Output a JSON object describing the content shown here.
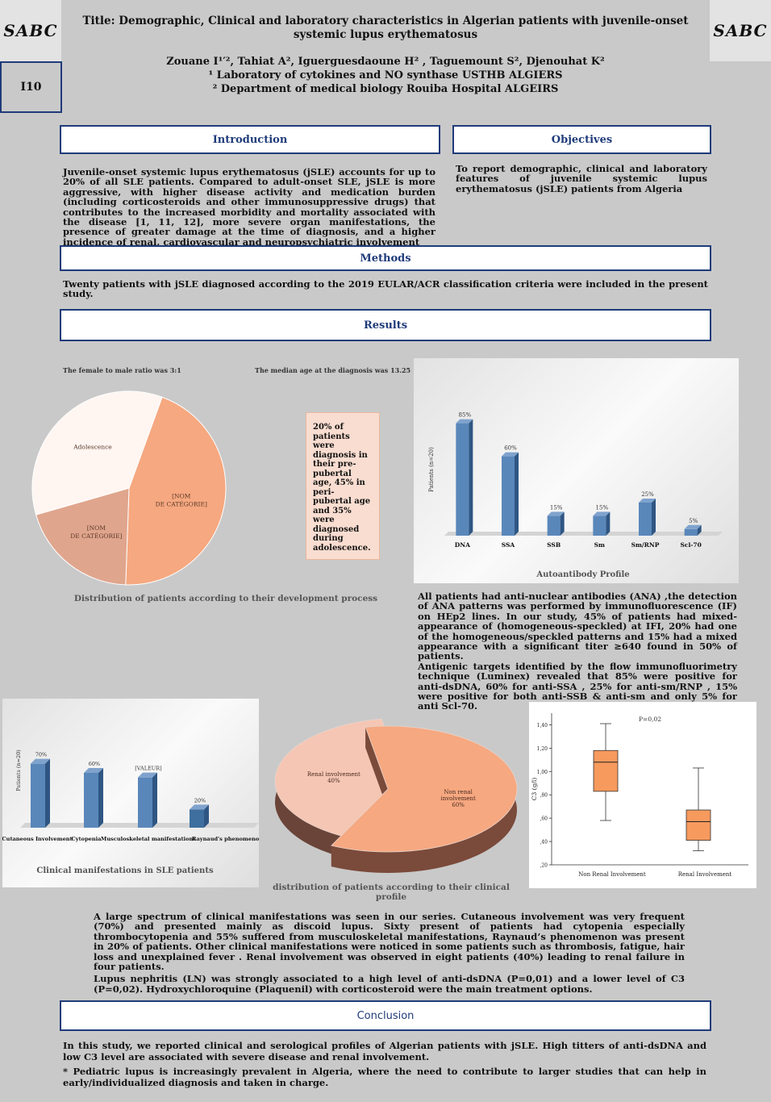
{
  "header": {
    "logo_text": "SABC",
    "poster_code": "I10",
    "title": "Title: Demographic, Clinical and laboratory characteristics in Algerian patients with juvenile-onset systemic lupus erythematosus",
    "authors": "Zouane I¹′², Tahiat A², Iguerguesdaoune H² , Taguemount S², Djenouhat K²",
    "affiliation1": "¹ Laboratory of cytokines and NO synthase USTHB ALGIERS",
    "affiliation2": "² Department of medical biology Rouiba Hospital ALGEIRS"
  },
  "sections": {
    "introduction": "Introduction",
    "objectives": "Objectives",
    "methods": "Methods",
    "results": "Results",
    "conclusion": "Conclusion"
  },
  "introduction_text": "Juvenile-onset systemic lupus erythematosus (jSLE) accounts for up to 20% of all SLE patients. Compared to adult-onset SLE, jSLE is more aggressive, with higher disease activity and medication burden (including corticosteroids and other immunosuppressive drugs) that contributes to the increased morbidity and mortality associated with the disease [1, 11, 12], more severe organ manifestations, the presence of greater damage at the time of diagnosis, and a higher incidence of renal, cardiovascular and neuropsychiatric involvement",
  "objectives_text": "To report demographic, clinical and laboratory features of juvenile systemic lupus erythematosus (jSLE) patients from Algeria",
  "methods_text": "Twenty patients with jSLE diagnosed according to the 2019 EULAR/ACR classification criteria were included in the present study.",
  "results": {
    "sex_ratio_note": "The female to male ratio was 3:1",
    "median_age_note": "The median age at the diagnosis was 13.25",
    "callout": "20% of patients were diagnosis in their pre-pubertal age, 45% in peri-pubertal age and 35% were diagnosed during adolescence.",
    "pie1_caption": "Distribution of patients according to their development process",
    "antibody_text_1": "All patients had anti-nuclear antibodies (ANA) ,the detection of ANA patterns was performed by immunofluorescence (IF) on HEp2 lines. In our study, 45% of patients had mixed-appearance of (homogeneous-speckled) at IFI, 20% had one of the homogeneous/speckled patterns and 15% had a mixed appearance with a significant titer ≥640 found in 50% of patients.",
    "antibody_text_2": "Antigenic targets identified by the flow immunofluorimetry technique (Luminex) revealed that 85% were positive for anti-dsDNA, 60% for anti-SSA , 25% for anti-sm/RNP , 15% were positive for both anti-SSB & anti-sm and only 5% for anti Scl-70.",
    "pie2_caption": "distribution of patients according to their clinical profile",
    "clinical_text_1": "A large spectrum of clinical manifestations was seen in our series. Cutaneous involvement was very frequent (70%) and presented mainly as discoid lupus. Sixty present of patients had cytopenia especially thrombocytopenia and 55% suffered from musculoskeletal manifestations, Raynaud’s phenomenon was present in 20% of patients. Other clinical manifestations were noticed in some patients such as thrombosis, fatigue, hair loss  and unexplained fever . Renal involvement was observed in eight patients (40%) leading to renal failure in four patients.",
    "clinical_text_2": "Lupus nephritis (LN) was strongly associated to a high level of anti-dsDNA (P=0,01) and a lower level of C3 (P=0,02). Hydroxychloroquine (Plaquenil) with corticosteroid were the main treatment options."
  },
  "conclusion_text_1": "In this study, we reported clinical and serological profiles of Algerian patients with jSLE. High titters of anti-dsDNA and low C3 level are associated with severe disease and renal involvement.",
  "conclusion_text_2": "* Pediatric lupus is increasingly prevalent in Algeria, where the need to contribute to larger studies that can help in early/individualized diagnosis and  taken in charge.",
  "chart_data": [
    {
      "type": "pie",
      "caption": "Distribution of patients according to their development process",
      "labels": [
        "[NOM DE CATÉGORIE]",
        "[NOM DE CATÉGORIE]",
        "Adolescence"
      ],
      "values": [
        45,
        20,
        35
      ],
      "colors": [
        "#f6a880",
        "#e0a58d",
        "#fff5f1"
      ]
    },
    {
      "type": "bar",
      "title": "Autoantibody Profile",
      "ylabel": "Patients (n=20)",
      "categories": [
        "DNA",
        "SSA",
        "SSB",
        "Sm",
        "Sm/RNP",
        "Scl-70"
      ],
      "values": [
        85,
        60,
        15,
        15,
        25,
        5
      ],
      "value_labels": [
        "85%",
        "60%",
        "15%",
        "15%",
        "25%",
        "5%"
      ],
      "ylim": [
        0,
        100
      ],
      "color": "#5a87ba"
    },
    {
      "type": "bar",
      "title": "Clinical manifestations in SLE patients",
      "ylabel": "Patients (n=20)",
      "categories": [
        "Cutaneous Involvement",
        "Cytopenia",
        "Musculoskeletal manifestations",
        "Raynaud's phenomenon"
      ],
      "values": [
        70,
        60,
        55,
        20
      ],
      "value_labels": [
        "70%",
        "60%",
        "[VALEUR]",
        "20%"
      ],
      "ylim": [
        0,
        90
      ],
      "color": "#5a87ba"
    },
    {
      "type": "pie",
      "caption": "distribution of patients according to their clinical profile",
      "labels": [
        "Non renal involvement 60%",
        "Renal involvement 40%"
      ],
      "values": [
        60,
        40
      ],
      "colors": [
        "#f6a880",
        "#f5c6b4"
      ]
    },
    {
      "type": "box",
      "ylabel": "C3 (g/l)",
      "annotation": "P=0,02",
      "ylim": [
        0.2,
        1.5
      ],
      "yticks": [
        "1,40",
        "1,20",
        "1,00",
        ",80",
        ",60",
        ",40",
        ",20"
      ],
      "categories": [
        "Non Renal Involvement",
        "Renal Involvement"
      ],
      "boxes": [
        {
          "min": 0.58,
          "q1": 0.83,
          "median": 1.08,
          "q3": 1.18,
          "max": 1.41
        },
        {
          "min": 0.32,
          "q1": 0.41,
          "median": 0.57,
          "q3": 0.67,
          "max": 1.03
        }
      ],
      "color": "#f79a5e"
    }
  ]
}
